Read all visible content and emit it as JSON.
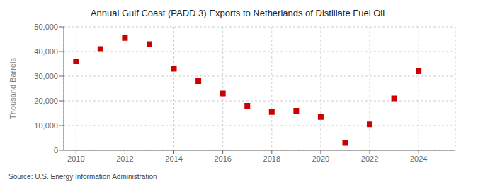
{
  "chart_data": {
    "type": "scatter",
    "title": "Annual Gulf Coast (PADD 3) Exports to Netherlands of Distillate Fuel Oil",
    "ylabel": "Thousand Barrels",
    "annotation": "Source: U.S. Energy Information Administration",
    "x": [
      2010,
      2011,
      2012,
      2013,
      2014,
      2015,
      2016,
      2017,
      2018,
      2019,
      2020,
      2021,
      2022,
      2023,
      2024
    ],
    "values": [
      36000,
      41000,
      45500,
      43000,
      33000,
      28000,
      23000,
      18000,
      15500,
      16000,
      13500,
      3000,
      10500,
      21000,
      32000
    ],
    "color": "#cc0000",
    "marker": "square",
    "xlim": [
      2009.5,
      2025.5
    ],
    "xticks": [
      2010,
      2012,
      2014,
      2016,
      2018,
      2020,
      2022,
      2024
    ],
    "ylim": [
      0,
      50000
    ],
    "yticks": [
      0,
      {
        "value": 10000,
        "label": "10,000"
      },
      {
        "value": 20000,
        "label": "20,000"
      },
      {
        "value": 30000,
        "label": "30,000"
      },
      {
        "value": 40000,
        "label": "40,000"
      },
      {
        "value": 50000,
        "label": "50,000"
      }
    ],
    "grid": true
  }
}
